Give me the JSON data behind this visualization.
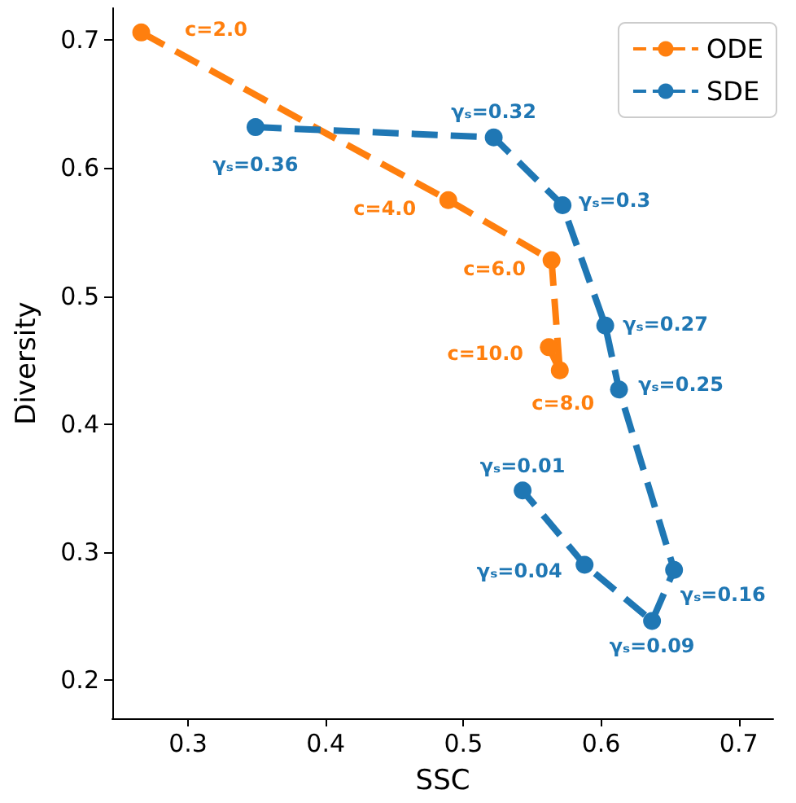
{
  "chart_data": {
    "type": "line",
    "xlabel": "SSC",
    "ylabel": "Diversity",
    "xlim": [
      0.245,
      0.725
    ],
    "xticks": [
      0.3,
      0.4,
      0.5,
      0.6,
      0.7
    ],
    "ylim": [
      0.17,
      0.725
    ],
    "yticks": [
      0.2,
      0.3,
      0.4,
      0.5,
      0.6,
      0.7
    ],
    "series": [
      {
        "name": "ODE",
        "color": "#ff7f0e",
        "x": [
          0.266,
          0.489,
          0.564,
          0.57,
          0.562
        ],
        "values": [
          0.706,
          0.575,
          0.528,
          0.442,
          0.46
        ]
      },
      {
        "name": "SDE",
        "color": "#1f77b4",
        "x": [
          0.349,
          0.522,
          0.572,
          0.603,
          0.613,
          0.653,
          0.637,
          0.588,
          0.543
        ],
        "values": [
          0.632,
          0.624,
          0.571,
          0.477,
          0.427,
          0.286,
          0.246,
          0.29,
          0.348
        ]
      }
    ],
    "annotations": [
      {
        "text": "c=2.0",
        "x": 0.266,
        "y": 0.706
      },
      {
        "text": "c=4.0",
        "x": 0.489,
        "y": 0.575
      },
      {
        "text": "c=6.0",
        "x": 0.564,
        "y": 0.528
      },
      {
        "text": "c=8.0",
        "x": 0.57,
        "y": 0.442
      },
      {
        "text": "c=10.0",
        "x": 0.562,
        "y": 0.46
      },
      {
        "text": "γₛ=0.36",
        "x": 0.349,
        "y": 0.632
      },
      {
        "text": "γₛ=0.32",
        "x": 0.522,
        "y": 0.624
      },
      {
        "text": "γₛ=0.3",
        "x": 0.572,
        "y": 0.571
      },
      {
        "text": "γₛ=0.27",
        "x": 0.603,
        "y": 0.477
      },
      {
        "text": "γₛ=0.25",
        "x": 0.613,
        "y": 0.427
      },
      {
        "text": "γₛ=0.16",
        "x": 0.653,
        "y": 0.286
      },
      {
        "text": "γₛ=0.09",
        "x": 0.637,
        "y": 0.246
      },
      {
        "text": "γₛ=0.04",
        "x": 0.588,
        "y": 0.29
      },
      {
        "text": "γₛ=0.01",
        "x": 0.543,
        "y": 0.348
      }
    ],
    "legend": "top right",
    "marker": "circle",
    "line_style": "dashed",
    "grid": false
  }
}
